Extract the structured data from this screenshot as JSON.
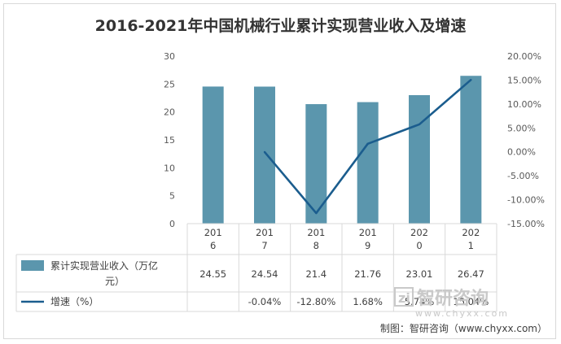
{
  "chart_data": {
    "type": "bar",
    "title": "2016-2021年中国机械行业累计实现营业收入及增速",
    "categories": [
      "2016",
      "2017",
      "2018",
      "2019",
      "2020",
      "2021"
    ],
    "category_display": [
      [
        "201",
        "6"
      ],
      [
        "201",
        "7"
      ],
      [
        "201",
        "8"
      ],
      [
        "201",
        "9"
      ],
      [
        "202",
        "0"
      ],
      [
        "202",
        "1"
      ]
    ],
    "ylim": [
      0,
      30
    ],
    "yticks": [
      0,
      5,
      10,
      15,
      20,
      25,
      30
    ],
    "y2lim": [
      -15,
      20
    ],
    "y2ticks": [
      "-15.00%",
      "-10.00%",
      "-5.00%",
      "0.00%",
      "5.00%",
      "10.00%",
      "15.00%",
      "20.00%"
    ],
    "series": [
      {
        "name": "累计实现营业收入（万亿元）",
        "type": "bar",
        "values": [
          24.55,
          24.54,
          21.4,
          21.76,
          23.01,
          26.47
        ],
        "labels": [
          "24.55",
          "24.54",
          "21.4",
          "21.76",
          "23.01",
          "26.47"
        ],
        "color": "#5b96ad"
      },
      {
        "name": "增速（%）",
        "type": "line",
        "axis": "secondary",
        "values": [
          null,
          -0.04,
          -12.8,
          1.68,
          5.74,
          15.04
        ],
        "labels": [
          "",
          "-0.04%",
          "-12.80%",
          "1.68%",
          "5.74%",
          "15.04%"
        ],
        "color": "#1b5d8e"
      }
    ],
    "legend": "data-table",
    "grid": false
  },
  "legend_labels": {
    "bar_line1": "累计实现营业收入（万亿",
    "bar_line2": "元）"
  },
  "watermark": {
    "brand": "智研咨询",
    "url": "www.chyxx.com"
  },
  "source": "制图：智研咨询（www.chyxx.com）"
}
